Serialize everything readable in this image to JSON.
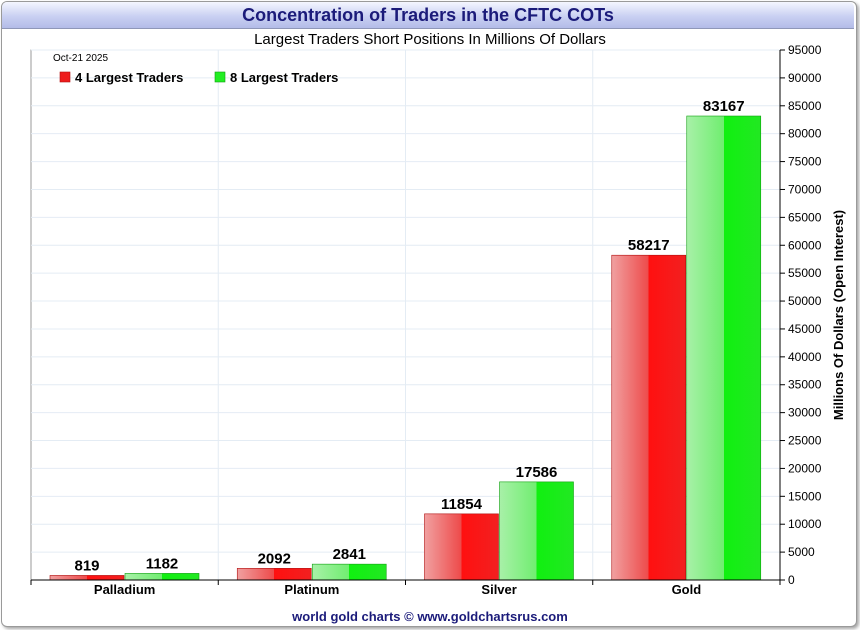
{
  "title": "Concentration of Traders in the CFTC COTs",
  "subtitle": "Largest Traders Short Positions In Millions Of Dollars",
  "date": "Oct-21  2025",
  "footer": "world gold charts © www.goldchartsrus.com",
  "colors": {
    "red": "#ee1c1c",
    "green": "#22ee22",
    "title_text": "#1b1b7a"
  },
  "chart_data": {
    "type": "bar",
    "categories": [
      "Palladium",
      "Platinum",
      "Silver",
      "Gold"
    ],
    "series": [
      {
        "name": "4 Largest Traders",
        "color": "#ee1c1c",
        "values": [
          819,
          2092,
          11854,
          58217
        ]
      },
      {
        "name": "8 Largest Traders",
        "color": "#22ee22",
        "values": [
          1182,
          2841,
          17586,
          83167
        ]
      }
    ],
    "ylabel": "Millions Of Dollars (Open Interest)",
    "ylim": [
      0,
      95000
    ],
    "ytick_step": 5000,
    "y_axis_side": "right",
    "grid": true,
    "legend": "top-left"
  }
}
